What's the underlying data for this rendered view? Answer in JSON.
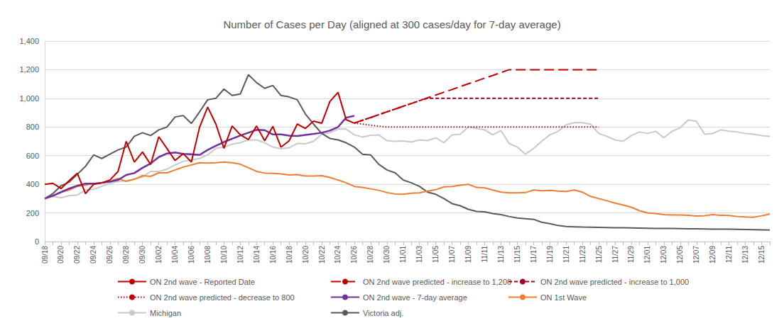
{
  "chart_data": {
    "type": "line",
    "title": "Number of Cases per Day (aligned at 300 cases/day for 7-day average)",
    "grid": true,
    "legend": "bottom",
    "ylim": [
      0,
      1400
    ],
    "yticks": [
      0,
      200,
      400,
      600,
      800,
      {
        "value": 1000,
        "label": "1,000"
      },
      {
        "value": 1200,
        "label": "1,200"
      },
      {
        "value": 1400,
        "label": "1,400"
      }
    ],
    "categories": [
      "09/18",
      null,
      "09/20",
      null,
      "09/22",
      null,
      "09/24",
      null,
      "09/26",
      null,
      "09/28",
      null,
      "09/30",
      null,
      "10/02",
      null,
      "10/04",
      null,
      "10/06",
      null,
      "10/08",
      null,
      "10/10",
      null,
      "10/12",
      null,
      "10/14",
      null,
      "10/16",
      null,
      "10/18",
      null,
      "10/20",
      null,
      "10/22",
      null,
      "10/24",
      null,
      "10/26",
      null,
      "10/28",
      null,
      "10/30",
      null,
      "11/01",
      null,
      "11/03",
      null,
      "11/05",
      null,
      "11/07",
      null,
      "11/09",
      null,
      "11/11",
      null,
      "11/13",
      null,
      "11/15",
      null,
      "11/17",
      null,
      "11/19",
      null,
      "11/21",
      null,
      "11/23",
      null,
      "11/25",
      null,
      "11/27",
      null,
      "11/29",
      null,
      "12/01",
      null,
      "12/03",
      null,
      "12/05",
      null,
      "12/07",
      null,
      "12/09",
      null,
      "12/11",
      null,
      "12/13",
      null,
      "12/15",
      null
    ],
    "series": [
      {
        "name": "ON 2nd wave - Reported Date",
        "color": "#C00000",
        "line_style": "solid",
        "values": [
          400,
          407,
          370,
          425,
          477,
          335,
          400,
          410,
          430,
          490,
          700,
          555,
          625,
          538,
          732,
          650,
          566,
          614,
          555,
          797,
          939,
          821,
          651,
          807,
          746,
          712,
          807,
          704,
          804,
          659,
          704,
          821,
          790,
          841,
          826,
          978,
          1042,
          851,
          827,
          null,
          null,
          null,
          null,
          null,
          null,
          null,
          null,
          null,
          null,
          null,
          null,
          null,
          null,
          null,
          null,
          null,
          null,
          null,
          null,
          null,
          null,
          null,
          null,
          null,
          null,
          null,
          null,
          null,
          null,
          null,
          null,
          null,
          null,
          null,
          null,
          null,
          null,
          null,
          null,
          null,
          null,
          null,
          null,
          null,
          null,
          null,
          null,
          null,
          null,
          null
        ]
      },
      {
        "name": "ON 2nd wave predicted - increase to 1,200",
        "color": "#C00000",
        "line_style": "long_dash",
        "values": [
          null,
          null,
          null,
          null,
          null,
          null,
          null,
          null,
          null,
          null,
          null,
          null,
          null,
          null,
          null,
          null,
          null,
          null,
          null,
          null,
          null,
          null,
          null,
          null,
          null,
          null,
          null,
          null,
          null,
          null,
          null,
          null,
          null,
          null,
          null,
          null,
          null,
          null,
          827,
          847,
          866,
          886,
          906,
          925,
          945,
          964,
          984,
          1004,
          1023,
          1043,
          1062,
          1082,
          1102,
          1121,
          1141,
          1160,
          1180,
          1200,
          1200,
          1200,
          1200,
          1200,
          1200,
          1200,
          1200,
          1200,
          1200,
          1200,
          1200,
          null,
          null,
          null,
          null,
          null,
          null,
          null,
          null,
          null,
          null,
          null,
          null,
          null,
          null,
          null,
          null,
          null,
          null,
          null,
          null,
          null
        ]
      },
      {
        "name": "ON 2nd wave predicted - increase to 1,000",
        "color": "#A50021",
        "line_style": "dash",
        "values": [
          null,
          null,
          null,
          null,
          null,
          null,
          null,
          null,
          null,
          null,
          null,
          null,
          null,
          null,
          null,
          null,
          null,
          null,
          null,
          null,
          null,
          null,
          null,
          null,
          null,
          null,
          null,
          null,
          null,
          null,
          null,
          null,
          null,
          null,
          null,
          null,
          null,
          null,
          827,
          847,
          866,
          886,
          906,
          925,
          945,
          964,
          984,
          1000,
          1000,
          1000,
          1000,
          1000,
          1000,
          1000,
          1000,
          1000,
          1000,
          1000,
          1000,
          1000,
          1000,
          1000,
          1000,
          1000,
          1000,
          1000,
          1000,
          1000,
          1000,
          null,
          null,
          null,
          null,
          null,
          null,
          null,
          null,
          null,
          null,
          null,
          null,
          null,
          null,
          null,
          null,
          null,
          null,
          null,
          null,
          null
        ]
      },
      {
        "name": "ON 2nd wave predicted - decrease to 800",
        "color": "#C00000",
        "line_style": "dot",
        "values": [
          null,
          null,
          null,
          null,
          null,
          null,
          null,
          null,
          null,
          null,
          null,
          null,
          null,
          null,
          null,
          null,
          null,
          null,
          null,
          null,
          null,
          null,
          null,
          null,
          null,
          null,
          null,
          null,
          null,
          null,
          null,
          null,
          null,
          null,
          null,
          null,
          null,
          null,
          827,
          820,
          813,
          806,
          800,
          800,
          800,
          800,
          800,
          800,
          800,
          800,
          800,
          800,
          800,
          800,
          800,
          800,
          800,
          800,
          800,
          800,
          800,
          800,
          800,
          800,
          800,
          800,
          800,
          800,
          800,
          null,
          null,
          null,
          null,
          null,
          null,
          null,
          null,
          null,
          null,
          null,
          null,
          null,
          null,
          null,
          null,
          null,
          null,
          null,
          null,
          null
        ]
      },
      {
        "name": "ON 2nd wave - 7-day average",
        "color": "#7030A0",
        "line_style": "solid",
        "values": [
          300,
          320,
          345,
          370,
          390,
          405,
          405,
          410,
          418,
          430,
          465,
          478,
          515,
          545,
          590,
          615,
          622,
          612,
          610,
          605,
          640,
          668,
          695,
          718,
          740,
          760,
          780,
          778,
          748,
          748,
          740,
          737,
          745,
          752,
          760,
          775,
          800,
          865,
          878,
          null,
          null,
          null,
          null,
          null,
          null,
          null,
          null,
          null,
          null,
          null,
          null,
          null,
          null,
          null,
          null,
          null,
          null,
          null,
          null,
          null,
          null,
          null,
          null,
          null,
          null,
          null,
          null,
          null,
          null,
          null,
          null,
          null,
          null,
          null,
          null,
          null,
          null,
          null,
          null,
          null,
          null,
          null,
          null,
          null,
          null,
          null,
          null,
          null,
          null,
          null
        ]
      },
      {
        "name": "ON 1st Wave",
        "color": "#ED7D31",
        "line_style": "solid",
        "values": [
          300,
          320,
          345,
          360,
          385,
          395,
          405,
          410,
          420,
          440,
          420,
          435,
          460,
          455,
          480,
          480,
          500,
          520,
          535,
          550,
          548,
          550,
          555,
          550,
          540,
          515,
          490,
          478,
          476,
          472,
          465,
          468,
          458,
          458,
          460,
          448,
          430,
          410,
          385,
          378,
          368,
          358,
          342,
          332,
          330,
          338,
          340,
          352,
          362,
          382,
          385,
          393,
          400,
          378,
          375,
          360,
          345,
          340,
          340,
          342,
          360,
          355,
          357,
          352,
          350,
          360,
          345,
          315,
          300,
          285,
          268,
          255,
          240,
          215,
          200,
          195,
          188,
          185,
          186,
          183,
          178,
          180,
          188,
          183,
          182,
          175,
          172,
          170,
          180,
          192
        ]
      },
      {
        "name": "Michigan",
        "color": "#C9C9C9",
        "line_style": "solid",
        "values": [
          300,
          315,
          305,
          320,
          325,
          360,
          365,
          385,
          405,
          420,
          425,
          435,
          450,
          490,
          490,
          505,
          535,
          560,
          570,
          580,
          605,
          650,
          660,
          680,
          690,
          710,
          710,
          690,
          660,
          648,
          655,
          685,
          683,
          700,
          750,
          760,
          785,
          785,
          745,
          730,
          742,
          745,
          705,
          700,
          703,
          695,
          710,
          705,
          725,
          690,
          745,
          750,
          800,
          790,
          780,
          745,
          775,
          685,
          660,
          610,
          650,
          700,
          745,
          770,
          815,
          830,
          830,
          820,
          755,
          735,
          710,
          700,
          740,
          765,
          755,
          770,
          725,
          770,
          795,
          850,
          840,
          750,
          755,
          780,
          770,
          765,
          755,
          750,
          740,
          735
        ]
      },
      {
        "name": "Victoria adj.",
        "color": "#595959",
        "line_style": "solid",
        "values": [
          300,
          335,
          390,
          415,
          470,
          525,
          605,
          580,
          610,
          640,
          660,
          735,
          760,
          740,
          780,
          800,
          870,
          880,
          825,
          905,
          990,
          1000,
          1065,
          1020,
          1030,
          1165,
          1110,
          1070,
          1090,
          1020,
          1010,
          990,
          890,
          820,
          755,
          720,
          710,
          690,
          660,
          610,
          605,
          540,
          500,
          480,
          430,
          410,
          385,
          345,
          330,
          300,
          265,
          250,
          225,
          210,
          208,
          195,
          188,
          175,
          165,
          160,
          155,
          135,
          125,
          112,
          105,
          103,
          101,
          100,
          99,
          98,
          97,
          96,
          95,
          94,
          93,
          92,
          92,
          91,
          90,
          89,
          89,
          88,
          87,
          86,
          86,
          85,
          84,
          83,
          82,
          80
        ]
      }
    ]
  }
}
